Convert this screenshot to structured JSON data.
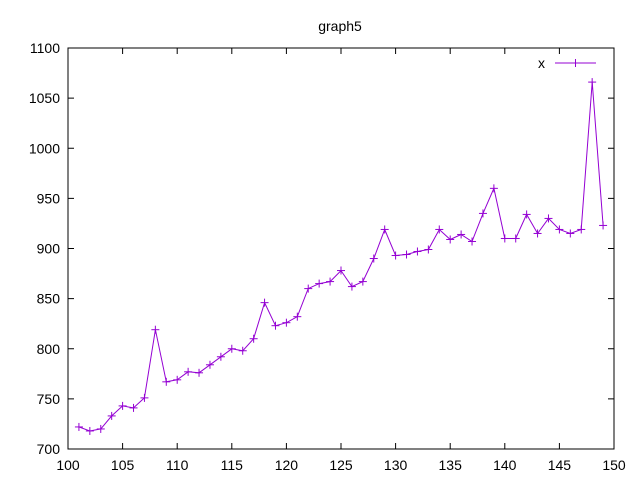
{
  "chart_data": {
    "type": "line",
    "title": "graph5",
    "xlabel": "",
    "ylabel": "",
    "xlim": [
      100,
      150
    ],
    "ylim": [
      700,
      1100
    ],
    "xticks": [
      100,
      105,
      110,
      115,
      120,
      125,
      130,
      135,
      140,
      145,
      150
    ],
    "yticks": [
      700,
      750,
      800,
      850,
      900,
      950,
      1000,
      1050,
      1100
    ],
    "grid": false,
    "legend_position": "top-right",
    "series": [
      {
        "name": "x",
        "color": "#9400d3",
        "marker": "plus",
        "x": [
          101,
          102,
          103,
          104,
          105,
          106,
          107,
          108,
          109,
          110,
          111,
          112,
          113,
          114,
          115,
          116,
          117,
          118,
          119,
          120,
          121,
          122,
          123,
          124,
          125,
          126,
          127,
          128,
          129,
          130,
          131,
          132,
          133,
          134,
          135,
          136,
          137,
          138,
          139,
          140,
          141,
          142,
          143,
          144,
          145,
          146,
          147,
          148,
          149
        ],
        "y": [
          722,
          718,
          720,
          733,
          743,
          741,
          751,
          819,
          767,
          769,
          777,
          776,
          784,
          792,
          800,
          798,
          810,
          846,
          823,
          826,
          832,
          860,
          865,
          867,
          878,
          862,
          867,
          890,
          919,
          893,
          894,
          897,
          899,
          919,
          909,
          914,
          907,
          935,
          960,
          910,
          910,
          934,
          915,
          930,
          919,
          915,
          919,
          1066,
          923
        ]
      }
    ]
  }
}
